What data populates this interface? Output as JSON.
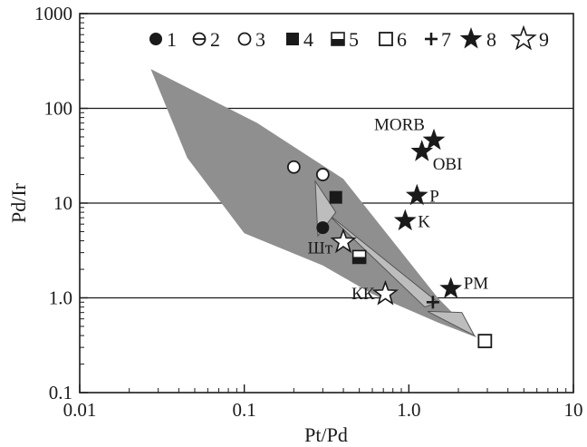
{
  "chart_data": {
    "type": "scatter",
    "title": "",
    "xlabel": "Pt/Pd",
    "ylabel": "Pd/Ir",
    "xscale": "log",
    "yscale": "log",
    "xlim": [
      0.01,
      10
    ],
    "ylim": [
      0.1,
      1000
    ],
    "xticks": [
      {
        "value": 0.01,
        "label": "0.01"
      },
      {
        "value": 0.1,
        "label": "0.1"
      },
      {
        "value": 1,
        "label": "1.0"
      },
      {
        "value": 10,
        "label": "10"
      }
    ],
    "yticks": [
      {
        "value": 0.1,
        "label": "0.1"
      },
      {
        "value": 1,
        "label": "1.0"
      },
      {
        "value": 10,
        "label": "10"
      },
      {
        "value": 100,
        "label": "100"
      },
      {
        "value": 1000,
        "label": "1000"
      }
    ],
    "gridlines": "horizontal",
    "legend_position": "top",
    "legend": [
      {
        "symbol": "filled-circle",
        "label": "1"
      },
      {
        "symbol": "circle-with-line",
        "label": "2"
      },
      {
        "symbol": "open-circle",
        "label": "3"
      },
      {
        "symbol": "filled-square",
        "label": "4"
      },
      {
        "symbol": "half-square",
        "label": "5"
      },
      {
        "symbol": "open-square",
        "label": "6"
      },
      {
        "symbol": "plus",
        "label": "7"
      },
      {
        "symbol": "filled-star",
        "label": "8"
      },
      {
        "symbol": "open-star",
        "label": "9"
      }
    ],
    "field": {
      "color": "#8f8f8f",
      "outline": [
        [
          0.027,
          260
        ],
        [
          0.12,
          70
        ],
        [
          0.4,
          18
        ],
        [
          1.5,
          1.0
        ],
        [
          2.6,
          0.38
        ],
        [
          1.5,
          0.55
        ],
        [
          0.6,
          1.1
        ],
        [
          0.3,
          2.2
        ],
        [
          0.1,
          4.8
        ],
        [
          0.045,
          30
        ]
      ]
    },
    "triangles": {
      "color": "#bdbdbd",
      "upper": [
        [
          0.27,
          17
        ],
        [
          0.36,
          8
        ],
        [
          0.28,
          4.5
        ]
      ],
      "lower": [
        [
          1.3,
          0.72
        ],
        [
          2.5,
          0.4
        ],
        [
          2.1,
          0.7
        ]
      ],
      "band": [
        [
          0.3,
          8.5
        ],
        [
          0.33,
          7.3
        ],
        [
          1.25,
          0.8
        ],
        [
          1.5,
          0.9
        ]
      ]
    },
    "series": [
      {
        "label": "1",
        "symbol": "filled-circle",
        "points": [
          {
            "x": 0.3,
            "y": 5.5
          }
        ]
      },
      {
        "label": "3",
        "symbol": "open-circle",
        "points": [
          {
            "x": 0.2,
            "y": 24
          },
          {
            "x": 0.3,
            "y": 20
          }
        ]
      },
      {
        "label": "4",
        "symbol": "filled-square",
        "points": [
          {
            "x": 0.36,
            "y": 11.5
          }
        ]
      },
      {
        "label": "5",
        "symbol": "half-square",
        "points": [
          {
            "x": 0.5,
            "y": 2.7
          }
        ]
      },
      {
        "label": "6",
        "symbol": "open-square",
        "points": [
          {
            "x": 2.9,
            "y": 0.35
          }
        ]
      },
      {
        "label": "7",
        "symbol": "plus",
        "points": [
          {
            "x": 1.4,
            "y": 0.9
          }
        ]
      },
      {
        "label": "8",
        "symbol": "filled-star",
        "points": [
          {
            "x": 1.42,
            "y": 46,
            "name": "MORB"
          },
          {
            "x": 1.2,
            "y": 35,
            "name": "OBI"
          },
          {
            "x": 1.12,
            "y": 12,
            "name": "P"
          },
          {
            "x": 0.95,
            "y": 6.5,
            "name": "K"
          },
          {
            "x": 1.8,
            "y": 1.25,
            "name": "PM"
          }
        ]
      },
      {
        "label": "9",
        "symbol": "open-star",
        "points": [
          {
            "x": 0.4,
            "y": 3.9,
            "name": "Шт"
          },
          {
            "x": 0.72,
            "y": 1.1,
            "name": "КК"
          }
        ]
      }
    ]
  }
}
